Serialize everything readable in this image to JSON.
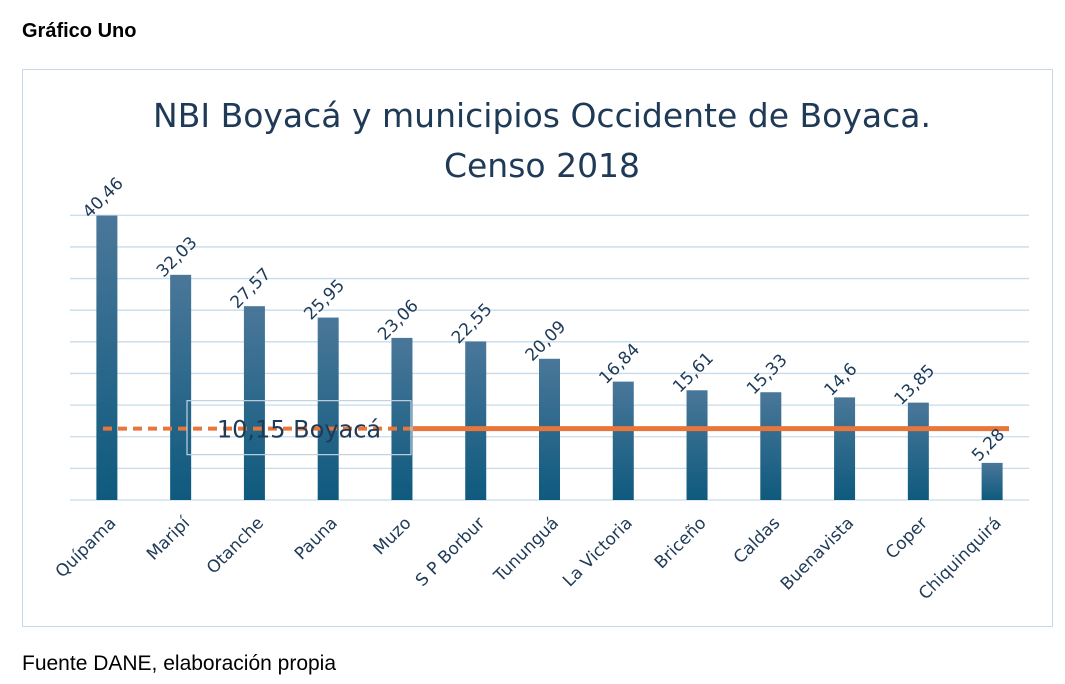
{
  "header": {
    "title": "Gráfico Uno"
  },
  "footer": {
    "source": "Fuente DANE, elaboración propia"
  },
  "colors": {
    "bar_top": "#4a7799",
    "bar_bottom": "#0e5a7e",
    "reference_line": "#e8763a",
    "grid": "#c6dcec",
    "text": "#1f3a57"
  },
  "chart_data": {
    "type": "bar",
    "title": "NBI Boyacá y municipios Occidente de Boyaca.",
    "subtitle": "Censo 2018",
    "categories": [
      "Quípama",
      "Maripí",
      "Otanche",
      "Pauna",
      "Muzo",
      "S P Borbur",
      "Tununguá",
      "La Victoria",
      "Briceño",
      "Caldas",
      "Buenavista",
      "Coper",
      "Chiquinquirá"
    ],
    "values": [
      40.46,
      32.03,
      27.57,
      25.95,
      23.06,
      22.55,
      20.09,
      16.84,
      15.61,
      15.33,
      14.6,
      13.85,
      5.28
    ],
    "value_labels": [
      "40,46",
      "32,03",
      "27,57",
      "25,95",
      "23,06",
      "22,55",
      "20,09",
      "16,84",
      "15,61",
      "15,33",
      "14,6",
      "13,85",
      "5,28"
    ],
    "ylim": [
      0,
      45
    ],
    "grid": true,
    "reference_line": {
      "value": 10.15,
      "label": "10,15 Boyacá"
    }
  }
}
